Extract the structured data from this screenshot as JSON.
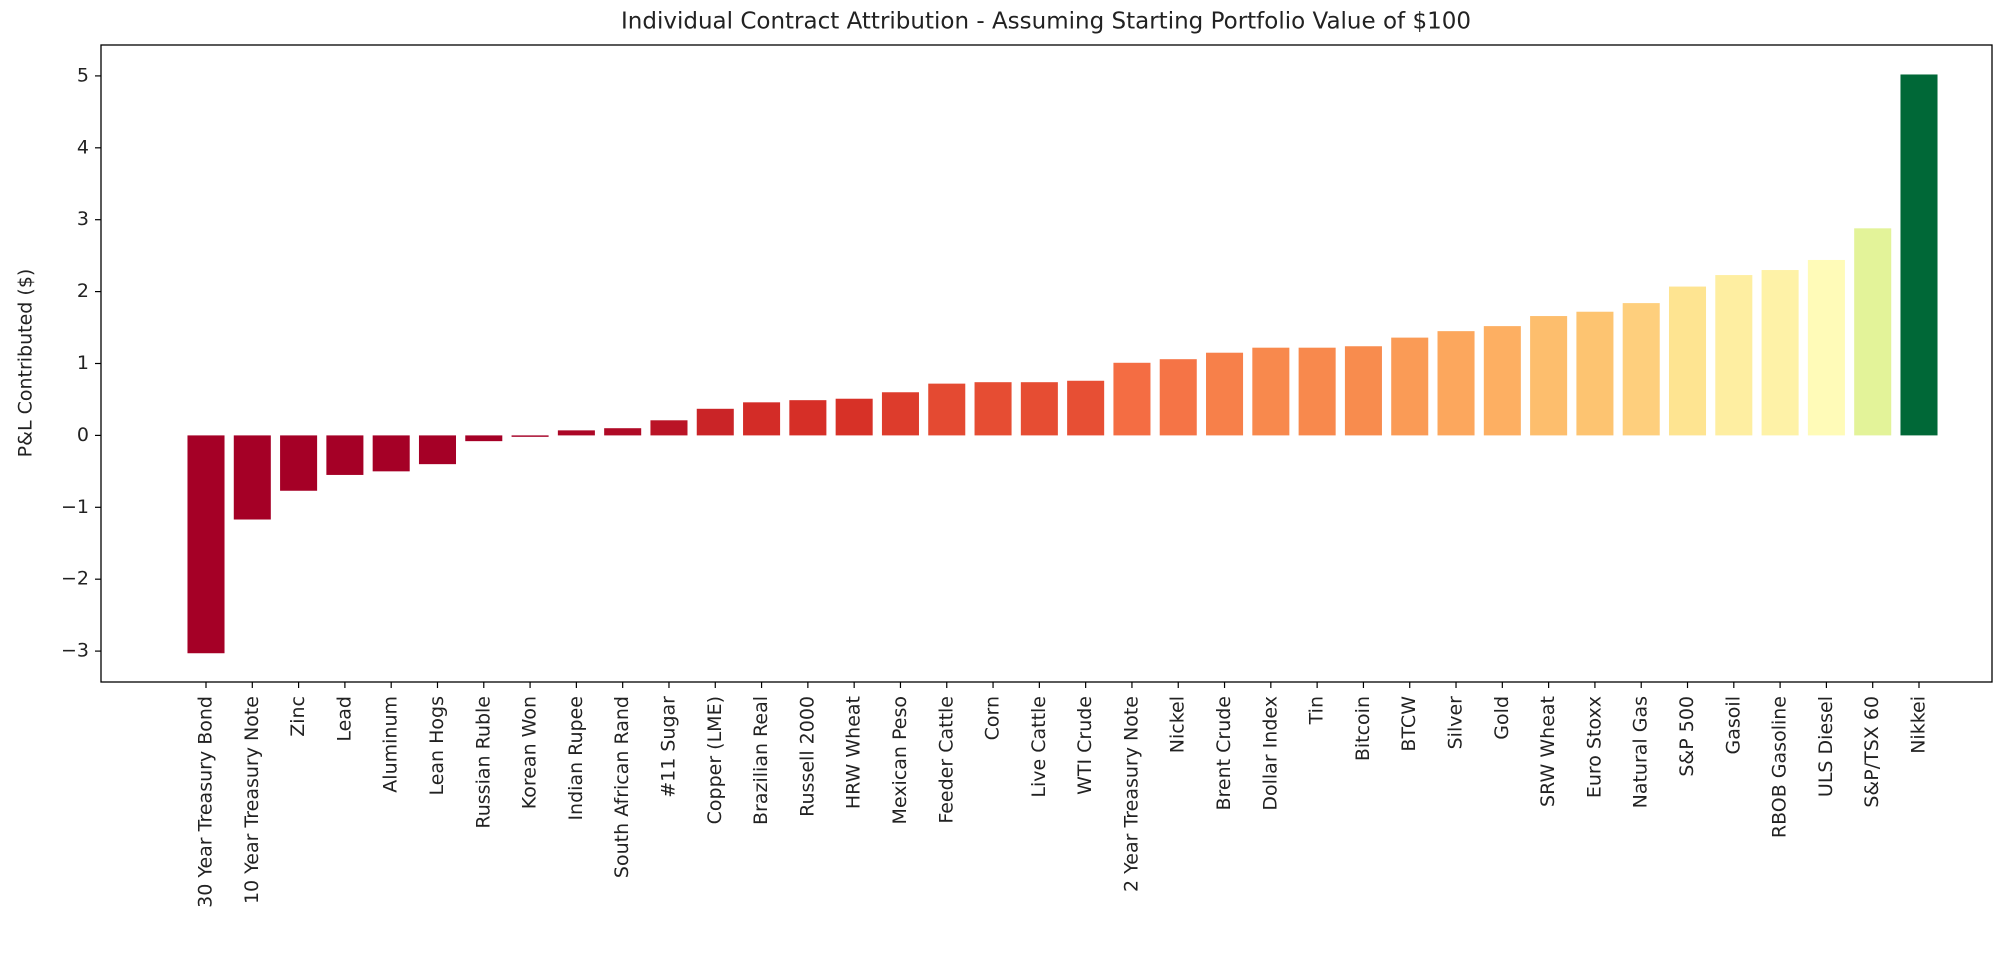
{
  "chart_data": {
    "type": "bar",
    "title": "Individual Contract Attribution - Assuming Starting Portfolio Value of $100",
    "ylabel": "P&L Contributed ($)",
    "categories": [
      "30 Year Treasury Bond",
      "10 Year Treasury Note",
      "Zinc",
      "Lead",
      "Aluminum",
      "Lean Hogs",
      "Russian Ruble",
      "Korean Won",
      "Indian Rupee",
      "South African Rand",
      "#11 Sugar",
      "Copper (LME)",
      "Brazilian Real",
      "Russell 2000",
      "HRW Wheat",
      "Mexican Peso",
      "Feeder Cattle",
      "Corn",
      "Live Cattle",
      "WTI Crude",
      "2 Year Treasury Note",
      "Nickel",
      "Brent Crude",
      "Dollar Index",
      "Tin",
      "Bitcoin",
      "BTCW",
      "Silver",
      "Gold",
      "SRW Wheat",
      "Euro Stoxx",
      "Natural Gas",
      "S&P 500",
      "Gasoil",
      "RBOB Gasoline",
      "ULS Diesel",
      "S&P/TSX 60",
      "Nikkei"
    ],
    "values": [
      -3.03,
      -1.17,
      -0.77,
      -0.55,
      -0.5,
      -0.4,
      -0.08,
      -0.02,
      0.07,
      0.1,
      0.21,
      0.37,
      0.46,
      0.49,
      0.51,
      0.6,
      0.72,
      0.74,
      0.74,
      0.76,
      1.01,
      1.06,
      1.15,
      1.22,
      1.22,
      1.24,
      1.36,
      1.45,
      1.52,
      1.66,
      1.72,
      1.84,
      2.07,
      2.23,
      2.3,
      2.44,
      2.88,
      5.02
    ],
    "colors": [
      "#a50026",
      "#a50026",
      "#a50026",
      "#a50026",
      "#a50026",
      "#a50026",
      "#a50026",
      "#a50026",
      "#ac0726",
      "#af0a26",
      "#ba1426",
      "#ca2427",
      "#d32c27",
      "#d62f27",
      "#d73127",
      "#dd3c2c",
      "#e44a32",
      "#e64d33",
      "#e64d33",
      "#e74f34",
      "#f46d43",
      "#f57446",
      "#f7804a",
      "#f8894d",
      "#f8894d",
      "#f88c4e",
      "#fa9b56",
      "#fca75d",
      "#fdaf62",
      "#fdbe6d",
      "#fdc471",
      "#fecf7d",
      "#fee491",
      "#feeea1",
      "#fef2a7",
      "#fffbb8",
      "#e3f399",
      "#006837"
    ],
    "ylim": [
      -3.43,
      5.43
    ],
    "yticks": [
      {
        "value": -3,
        "label": "−3"
      },
      {
        "value": -2,
        "label": "−2"
      },
      {
        "value": -1,
        "label": "−1"
      },
      0,
      1,
      2,
      3,
      4,
      5
    ],
    "grid": false
  }
}
